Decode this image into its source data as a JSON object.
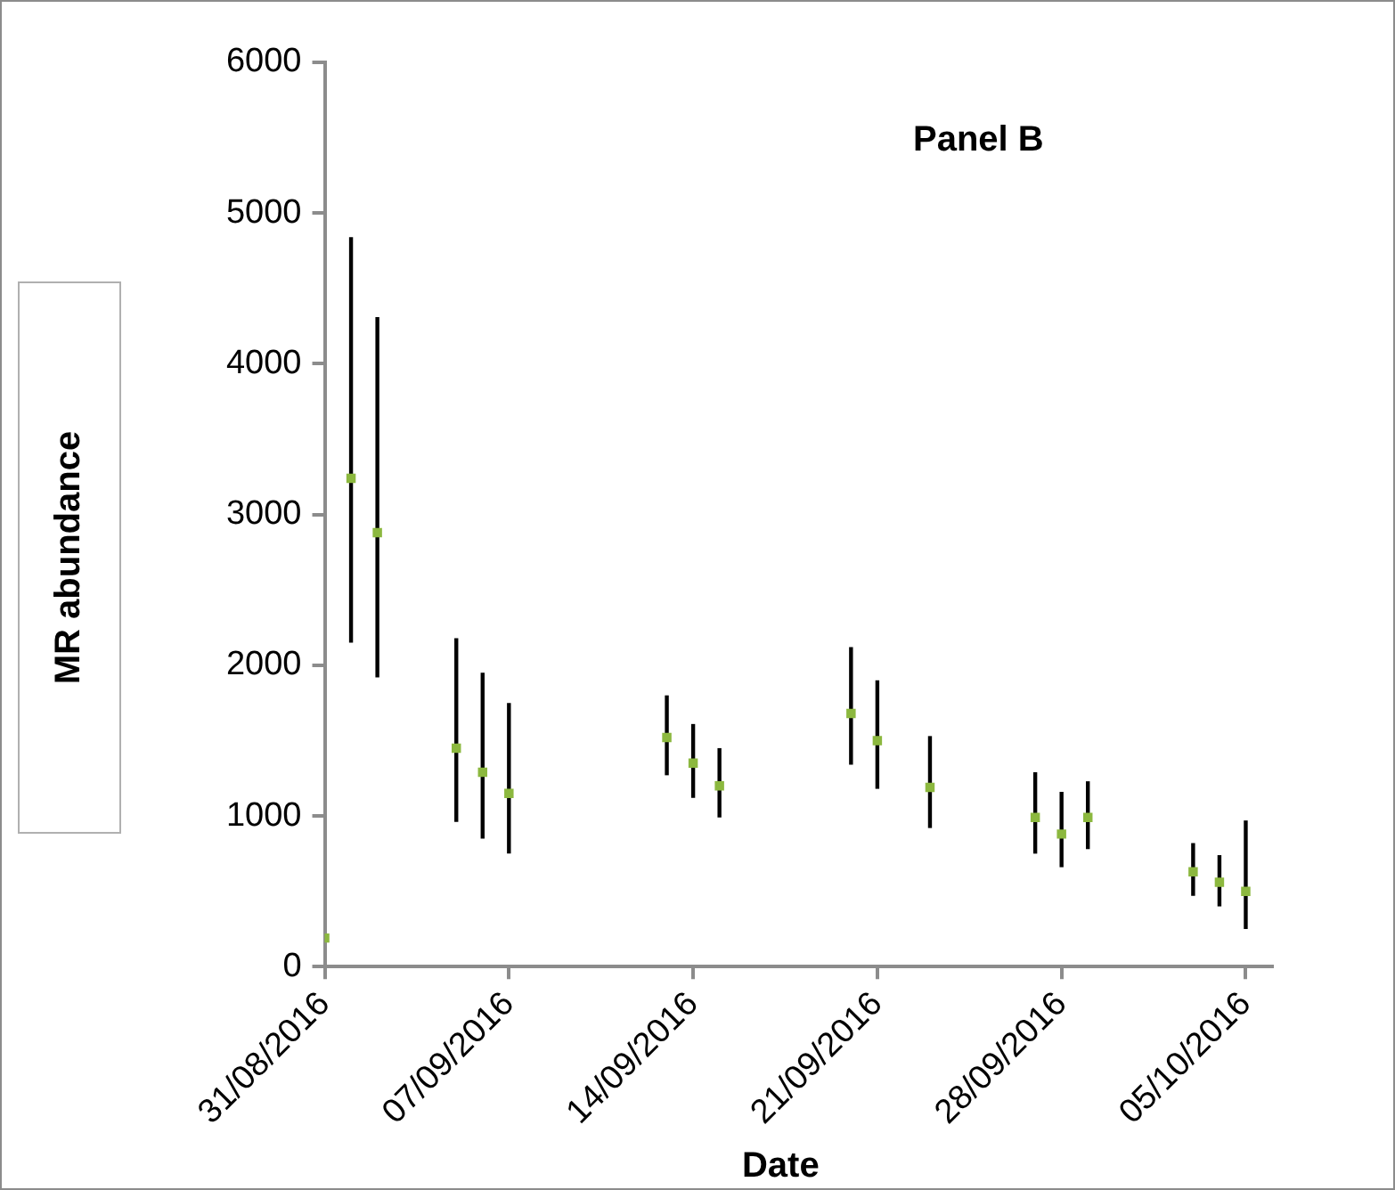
{
  "chart_data": {
    "type": "scatter",
    "title": "Panel B",
    "xlabel": "Date",
    "ylabel": "MR abundance",
    "x": [
      "2016-08-31",
      "2016-09-01",
      "2016-09-02",
      "2016-09-05",
      "2016-09-06",
      "2016-09-07",
      "2016-09-13",
      "2016-09-14",
      "2016-09-15",
      "2016-09-20",
      "2016-09-21",
      "2016-09-23",
      "2016-09-27",
      "2016-09-28",
      "2016-09-29",
      "2016-10-03",
      "2016-10-04",
      "2016-10-05"
    ],
    "series": [
      {
        "color": "#8cb83f",
        "values": [
          190,
          3240,
          2880,
          1450,
          1290,
          1150,
          1520,
          1350,
          1200,
          1680,
          1500,
          1190,
          990,
          880,
          990,
          630,
          560,
          500
        ],
        "errors": [
          null,
          [
            2150,
            4840
          ],
          [
            1920,
            4310
          ],
          [
            960,
            2180
          ],
          [
            850,
            1950
          ],
          [
            750,
            1750
          ],
          [
            1270,
            1800
          ],
          [
            1120,
            1610
          ],
          [
            990,
            1450
          ],
          [
            1340,
            2120
          ],
          [
            1180,
            1900
          ],
          [
            920,
            1530
          ],
          [
            750,
            1290
          ],
          [
            660,
            1160
          ],
          [
            780,
            1230
          ],
          [
            470,
            820
          ],
          [
            400,
            740
          ],
          [
            250,
            970
          ]
        ]
      }
    ],
    "marker": "square",
    "xlim": [
      "2016-08-31",
      "2016-10-06"
    ],
    "xticks": [
      {
        "value": "2016-08-31",
        "label": "31/08/2016"
      },
      {
        "value": "2016-09-07",
        "label": "07/09/2016"
      },
      {
        "value": "2016-09-14",
        "label": "14/09/2016"
      },
      {
        "value": "2016-09-21",
        "label": "21/09/2016"
      },
      {
        "value": "2016-09-28",
        "label": "28/09/2016"
      },
      {
        "value": "2016-10-05",
        "label": "05/10/2016"
      }
    ],
    "ylim": [
      0,
      6000
    ],
    "yticks": [
      0,
      1000,
      2000,
      3000,
      4000,
      5000,
      6000
    ]
  }
}
